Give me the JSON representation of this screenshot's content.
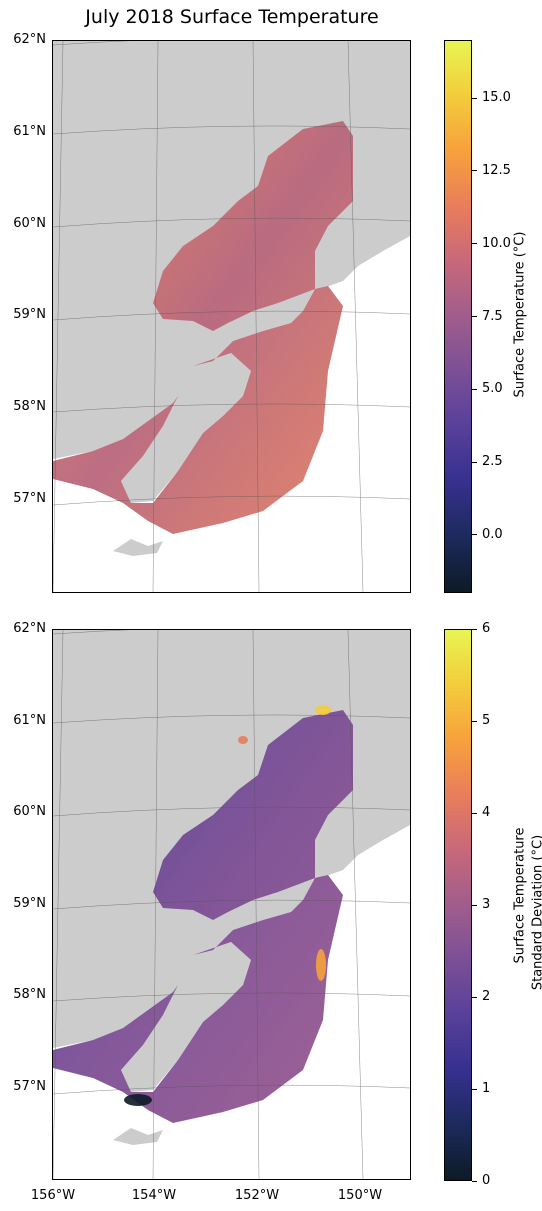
{
  "title": "July 2018 Surface Temperature",
  "latitude_labels": [
    "62°N",
    "61°N",
    "60°N",
    "59°N",
    "58°N",
    "57°N"
  ],
  "longitude_labels": [
    "156°W",
    "154°W",
    "152°W",
    "150°W"
  ],
  "maps": [
    {
      "name": "temperature",
      "colorbar": {
        "label_lines": [
          "Surface Temperature (°C)"
        ],
        "range": [
          -2,
          17
        ],
        "ticks": [
          "15.0",
          "12.5",
          "10.0",
          "7.5",
          "5.0",
          "2.5",
          "0.0"
        ],
        "tick_values": [
          15,
          12.5,
          10,
          7.5,
          5,
          2.5,
          0
        ],
        "colormap": [
          "#0d1a26",
          "#1c2a5c",
          "#36308f",
          "#58409a",
          "#7b4f96",
          "#a05d8c",
          "#c8687a",
          "#e97d5b",
          "#f7a13c",
          "#f3cc3c",
          "#e8f553"
        ]
      },
      "fill_color": "#b46a80"
    },
    {
      "name": "std-deviation",
      "colorbar": {
        "label_lines": [
          "Surface Temperature",
          "Standard Deviation (°C)"
        ],
        "range": [
          0,
          6
        ],
        "ticks": [
          "6",
          "5",
          "4",
          "3",
          "2",
          "1",
          "0"
        ],
        "tick_values": [
          6,
          5,
          4,
          3,
          2,
          1,
          0
        ],
        "colormap": [
          "#0d1a26",
          "#1c2a5c",
          "#36308f",
          "#58409a",
          "#7b4f96",
          "#a05d8c",
          "#c8687a",
          "#e97d5b",
          "#f7a13c",
          "#f3cc3c",
          "#e8f553"
        ]
      },
      "fill_color": "#6a4a9c"
    }
  ],
  "colors": {
    "land": "#cccccc",
    "ocean": "#ffffff",
    "frame": "#000000"
  }
}
